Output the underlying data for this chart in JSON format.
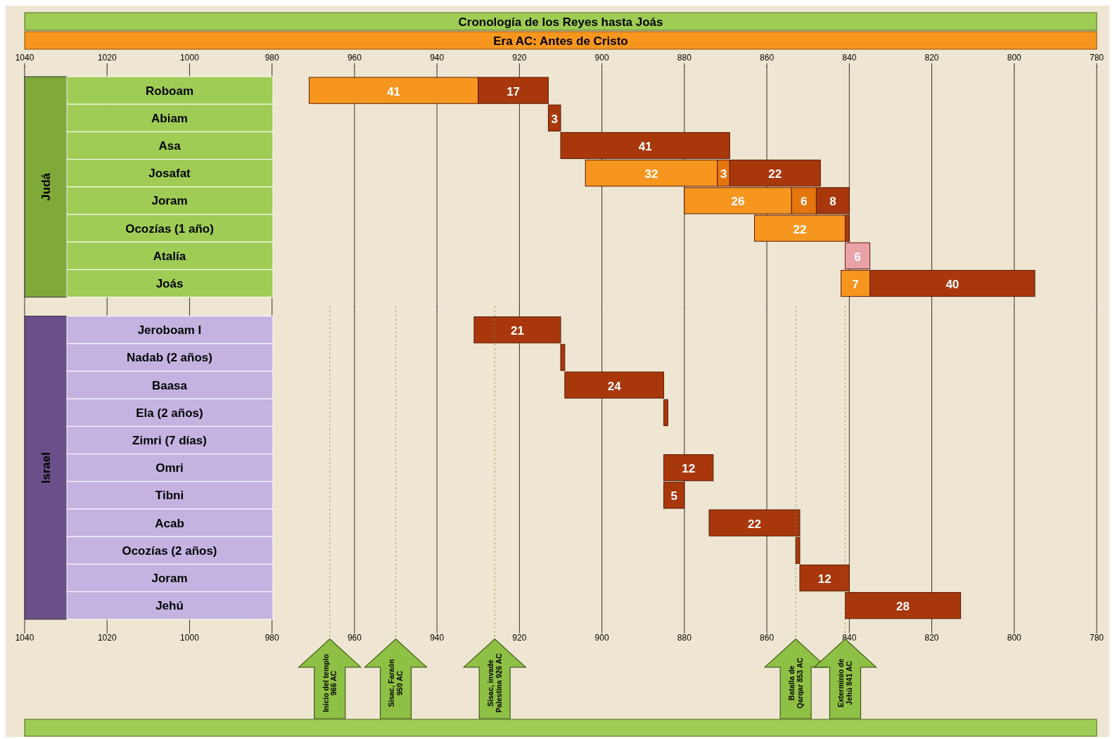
{
  "chart_data": [
    {
      "type": "bar",
      "orientation": "horizontal",
      "title": "Cronología de los Reyes hasta Joás",
      "subtitle": "Era AC: Antes de Cristo",
      "ylabel": "Judá",
      "categories": [
        "Roboam",
        "Abiam",
        "Asa",
        "Josafat",
        "Joram",
        "Ocozías (1 año)",
        "Atalía",
        "Joás"
      ],
      "series": [
        {
          "color": "#f7961f",
          "values": [
            41,
            null,
            null,
            32,
            26,
            22,
            null,
            7
          ],
          "base": [
            930,
            null,
            null,
            872,
            854,
            841,
            null,
            835
          ],
          "value_labels": [
            "41",
            null,
            null,
            "32",
            "26",
            "22",
            null,
            "7"
          ]
        },
        {
          "color": "#e5760e",
          "values": [
            null,
            null,
            null,
            3,
            6,
            null,
            null,
            null
          ],
          "base": [
            null,
            null,
            null,
            869,
            848,
            null,
            null,
            null
          ],
          "value_labels": [
            null,
            null,
            null,
            "3",
            "6",
            null,
            null,
            null
          ]
        },
        {
          "color": "#a8380c",
          "values": [
            17,
            3,
            41,
            22,
            8,
            1,
            null,
            40
          ],
          "base": [
            913,
            910,
            869,
            847,
            840,
            840,
            null,
            795
          ],
          "value_labels": [
            "17",
            "3",
            "41",
            "22",
            "8",
            null,
            null,
            "40"
          ]
        },
        {
          "color": "#e9a3a8",
          "values": [
            null,
            null,
            null,
            null,
            null,
            null,
            6,
            null
          ],
          "base": [
            null,
            null,
            null,
            null,
            null,
            null,
            835,
            null
          ],
          "value_labels": [
            null,
            null,
            null,
            null,
            null,
            null,
            "6",
            null
          ]
        }
      ],
      "xlim": [
        1040,
        780
      ],
      "xticks": [
        1040,
        1020,
        1000,
        980,
        960,
        940,
        920,
        900,
        880,
        860,
        840,
        820,
        800,
        780
      ],
      "grid": "x"
    },
    {
      "type": "bar",
      "orientation": "horizontal",
      "ylabel": "Israel",
      "categories": [
        "Jeroboam I",
        "Nadab (2 años)",
        "Baasa",
        "Ela (2 años)",
        "Zimri (7 días)",
        "Omri",
        "Tibni",
        "Acab",
        "Ocozías (2 años)",
        "Joram",
        "Jehú"
      ],
      "series": [
        {
          "color": "#a8380c",
          "values": [
            21,
            1,
            24,
            1,
            null,
            12,
            5,
            22,
            1,
            12,
            28
          ],
          "base": [
            910,
            909,
            885,
            884,
            null,
            873,
            880,
            852,
            852,
            840,
            813
          ],
          "value_labels": [
            "21",
            null,
            "24",
            null,
            null,
            "12",
            "5",
            "22",
            null,
            "12",
            "28"
          ]
        }
      ],
      "xlim": [
        1040,
        780
      ],
      "xticks": [
        1040,
        1020,
        1000,
        980,
        960,
        940,
        920,
        900,
        880,
        860,
        840,
        820,
        800,
        780
      ],
      "grid": "x",
      "ref_lines": [
        {
          "axis": "x",
          "value": 966,
          "label": "Inicio del templo\n966 AC"
        },
        {
          "axis": "x",
          "value": 950,
          "label": "Sisac, Faraón\n950 AC"
        },
        {
          "axis": "x",
          "value": 926,
          "label": "Sisac, invade\nPalestina 926 AC"
        },
        {
          "axis": "x",
          "value": 853,
          "label": "Batalla de\nQarqar 853 AC"
        },
        {
          "axis": "x",
          "value": 841,
          "label": "Exterminio de\nJehú 841 AC"
        }
      ]
    }
  ]
}
